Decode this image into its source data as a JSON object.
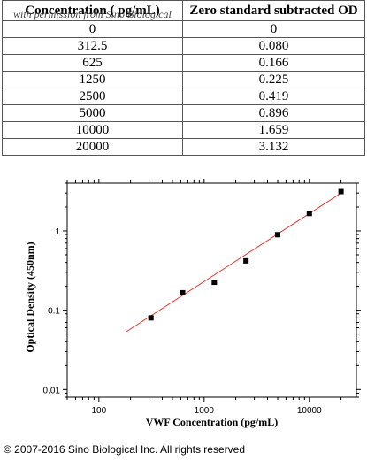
{
  "table": {
    "headers": [
      "Concentration ( pg/mL)",
      "Zero standard subtracted OD"
    ],
    "watermark": "with permission from Sino Biological",
    "rows": [
      [
        "0",
        "0"
      ],
      [
        "312.5",
        "0.080"
      ],
      [
        "625",
        "0.166"
      ],
      [
        "1250",
        "0.225"
      ],
      [
        "2500",
        "0.419"
      ],
      [
        "5000",
        "0.896"
      ],
      [
        "10000",
        "1.659"
      ],
      [
        "20000",
        "3.132"
      ]
    ]
  },
  "chart_data": {
    "type": "scatter",
    "xscale": "log",
    "yscale": "log",
    "xlabel": "VWF Concentration (pg/mL)",
    "ylabel": "Optical Density (450nm)",
    "xlim": [
      50,
      28000
    ],
    "ylim": [
      0.008,
      4
    ],
    "xticks": [
      100,
      1000,
      10000
    ],
    "xtick_labels": [
      "100",
      "1000",
      "10000"
    ],
    "yticks": [
      0.01,
      0.1,
      1
    ],
    "ytick_labels": [
      "0.01",
      "0.1",
      "1"
    ],
    "points": [
      {
        "x": 312.5,
        "y": 0.08
      },
      {
        "x": 625,
        "y": 0.166
      },
      {
        "x": 1250,
        "y": 0.225
      },
      {
        "x": 2500,
        "y": 0.419
      },
      {
        "x": 5000,
        "y": 0.896
      },
      {
        "x": 10000,
        "y": 1.659
      },
      {
        "x": 20000,
        "y": 3.132
      }
    ],
    "fit_line": {
      "x": [
        180,
        20000
      ],
      "y": [
        0.053,
        3.0
      ]
    },
    "grid": false,
    "point_color": "#000000",
    "fit_color": "#e8312a"
  },
  "footer": {
    "copyright": "© 2007-2016 Sino Biological Inc. All rights reserved"
  }
}
